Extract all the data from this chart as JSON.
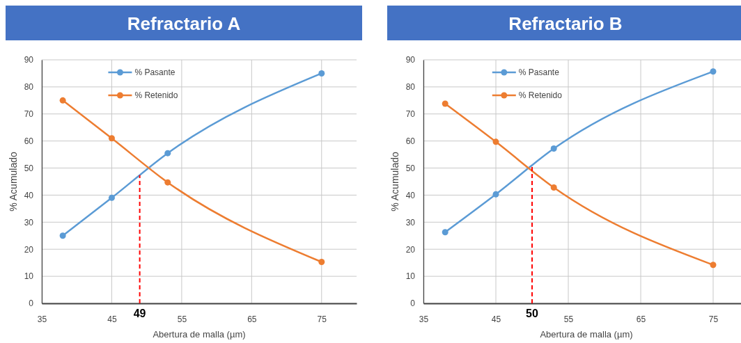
{
  "chart_data": [
    {
      "type": "line",
      "title": "Refractario A",
      "xlabel": "Abertura de malla (µm)",
      "ylabel": "% Acumulado",
      "x": [
        38,
        45,
        53,
        75
      ],
      "series": [
        {
          "name": "% Pasante",
          "color": "#5b9bd5",
          "values": [
            25,
            39,
            55.5,
            85
          ]
        },
        {
          "name": "% Retenido",
          "color": "#ed7d31",
          "values": [
            75,
            61,
            44.7,
            15.3
          ]
        }
      ],
      "ref_lines": [
        {
          "axis": "x",
          "value": 49,
          "label": "49",
          "color": "#ff0000",
          "line_style": "dashed"
        }
      ],
      "xlim": [
        35,
        80
      ],
      "xticks": [
        35,
        45,
        55,
        65,
        75
      ],
      "ylim": [
        0,
        90
      ],
      "yticks": [
        0,
        10,
        20,
        30,
        40,
        50,
        60,
        70,
        80,
        90
      ],
      "grid": true,
      "legend": "top",
      "marker": "circle",
      "line_style": "solid"
    },
    {
      "type": "line",
      "title": "Refractario B",
      "xlabel": "Abertura de malla (µm)",
      "ylabel": "% Acumulado",
      "x": [
        38,
        45,
        53,
        75
      ],
      "series": [
        {
          "name": "% Pasante",
          "color": "#5b9bd5",
          "values": [
            26.3,
            40.3,
            57.2,
            85.7
          ]
        },
        {
          "name": "% Retenido",
          "color": "#ed7d31",
          "values": [
            73.8,
            59.7,
            42.8,
            14.2
          ]
        }
      ],
      "ref_lines": [
        {
          "axis": "x",
          "value": 50,
          "label": "50",
          "color": "#ff0000",
          "line_style": "dashed"
        }
      ],
      "xlim": [
        35,
        80
      ],
      "xticks": [
        35,
        45,
        55,
        65,
        75
      ],
      "ylim": [
        0,
        90
      ],
      "yticks": [
        0,
        10,
        20,
        30,
        40,
        50,
        60,
        70,
        80,
        90
      ],
      "grid": true,
      "legend": "top",
      "marker": "circle",
      "line_style": "solid"
    }
  ]
}
